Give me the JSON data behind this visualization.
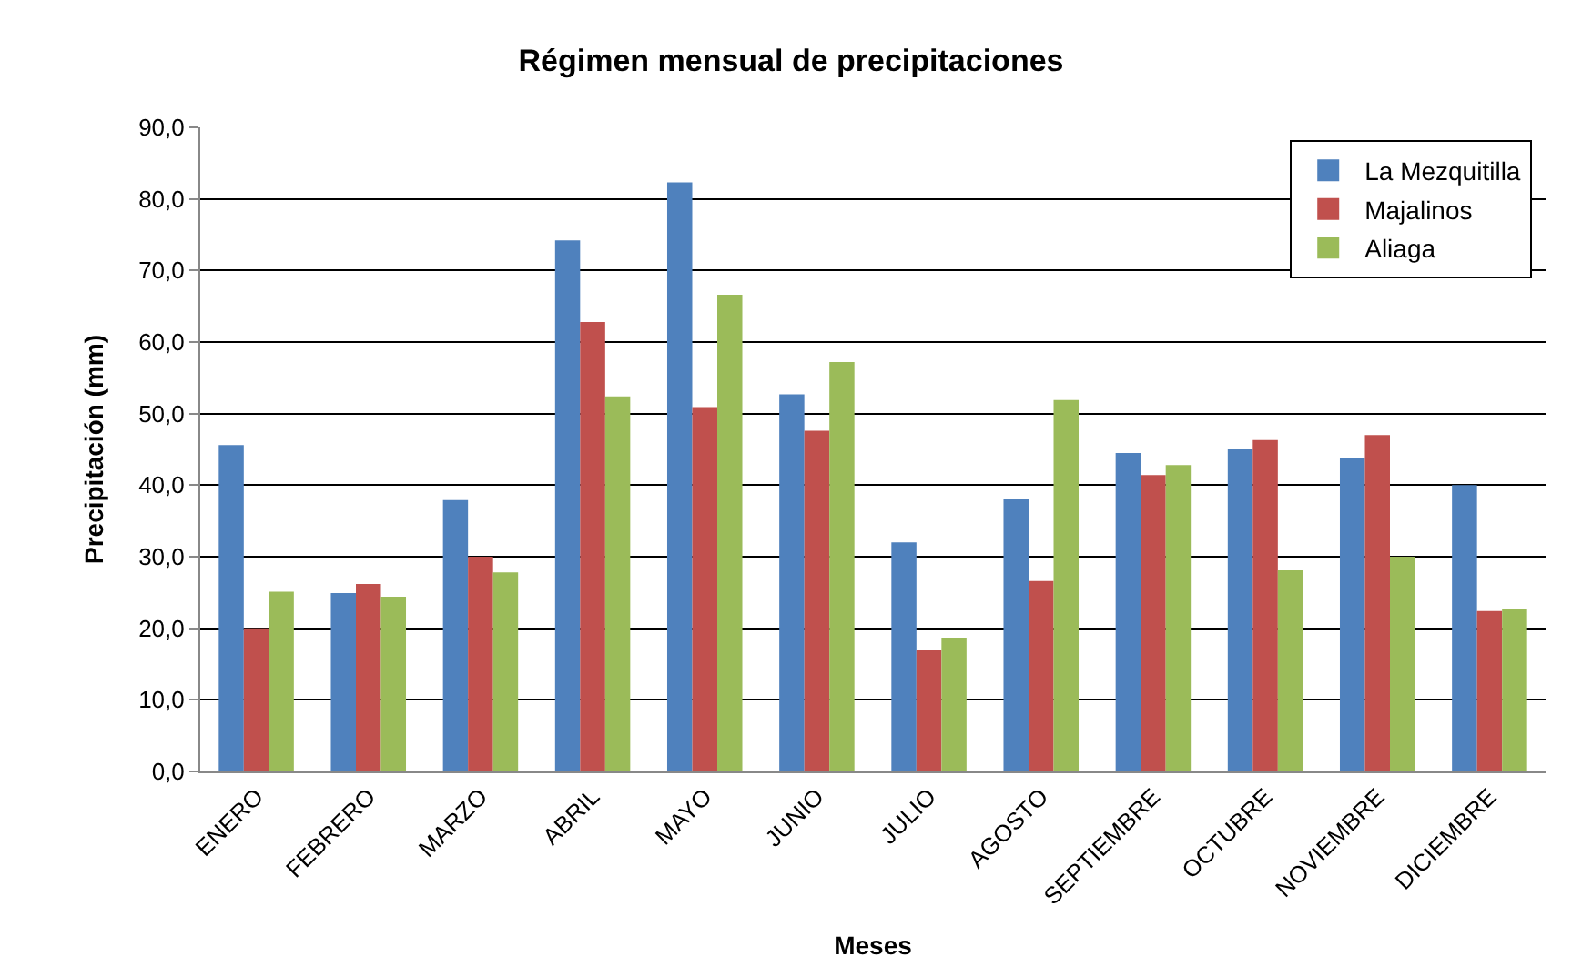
{
  "chart_data": {
    "type": "bar",
    "title": "Régimen mensual de precipitaciones",
    "xlabel": "Meses",
    "ylabel": "Precipitación (mm)",
    "categories": [
      "ENERO",
      "FEBRERO",
      "MARZO",
      "ABRIL",
      "MAYO",
      "JUNIO",
      "JULIO",
      "AGOSTO",
      "SEPTIEMBRE",
      "OCTUBRE",
      "NOVIEMBRE",
      "DICIEMBRE"
    ],
    "series": [
      {
        "name": "La Mezquitilla",
        "color": "#4f81bd",
        "values": [
          45.6,
          24.9,
          37.9,
          74.2,
          82.3,
          52.7,
          32.0,
          38.1,
          44.5,
          45.0,
          43.8,
          40.0
        ]
      },
      {
        "name": "Majalinos",
        "color": "#c0504d",
        "values": [
          20.0,
          26.2,
          30.0,
          62.8,
          50.9,
          47.6,
          16.9,
          26.6,
          41.4,
          46.3,
          47.0,
          22.4
        ]
      },
      {
        "name": "Aliaga",
        "color": "#9bbb59",
        "values": [
          25.1,
          24.4,
          27.8,
          52.4,
          66.6,
          57.2,
          18.7,
          51.9,
          42.8,
          28.1,
          30.0,
          22.7
        ]
      }
    ],
    "ylim": [
      0,
      90
    ],
    "yticks": [
      {
        "value": 0,
        "label": "0,0"
      },
      {
        "value": 10,
        "label": "10,0"
      },
      {
        "value": 20,
        "label": "20,0"
      },
      {
        "value": 30,
        "label": "30,0"
      },
      {
        "value": 40,
        "label": "40,0"
      },
      {
        "value": 50,
        "label": "50,0"
      },
      {
        "value": 60,
        "label": "60,0"
      },
      {
        "value": 70,
        "label": "70,0"
      },
      {
        "value": 80,
        "label": "80,0"
      },
      {
        "value": 90,
        "label": "90,0"
      }
    ],
    "grid": "y",
    "legend": "top right"
  }
}
